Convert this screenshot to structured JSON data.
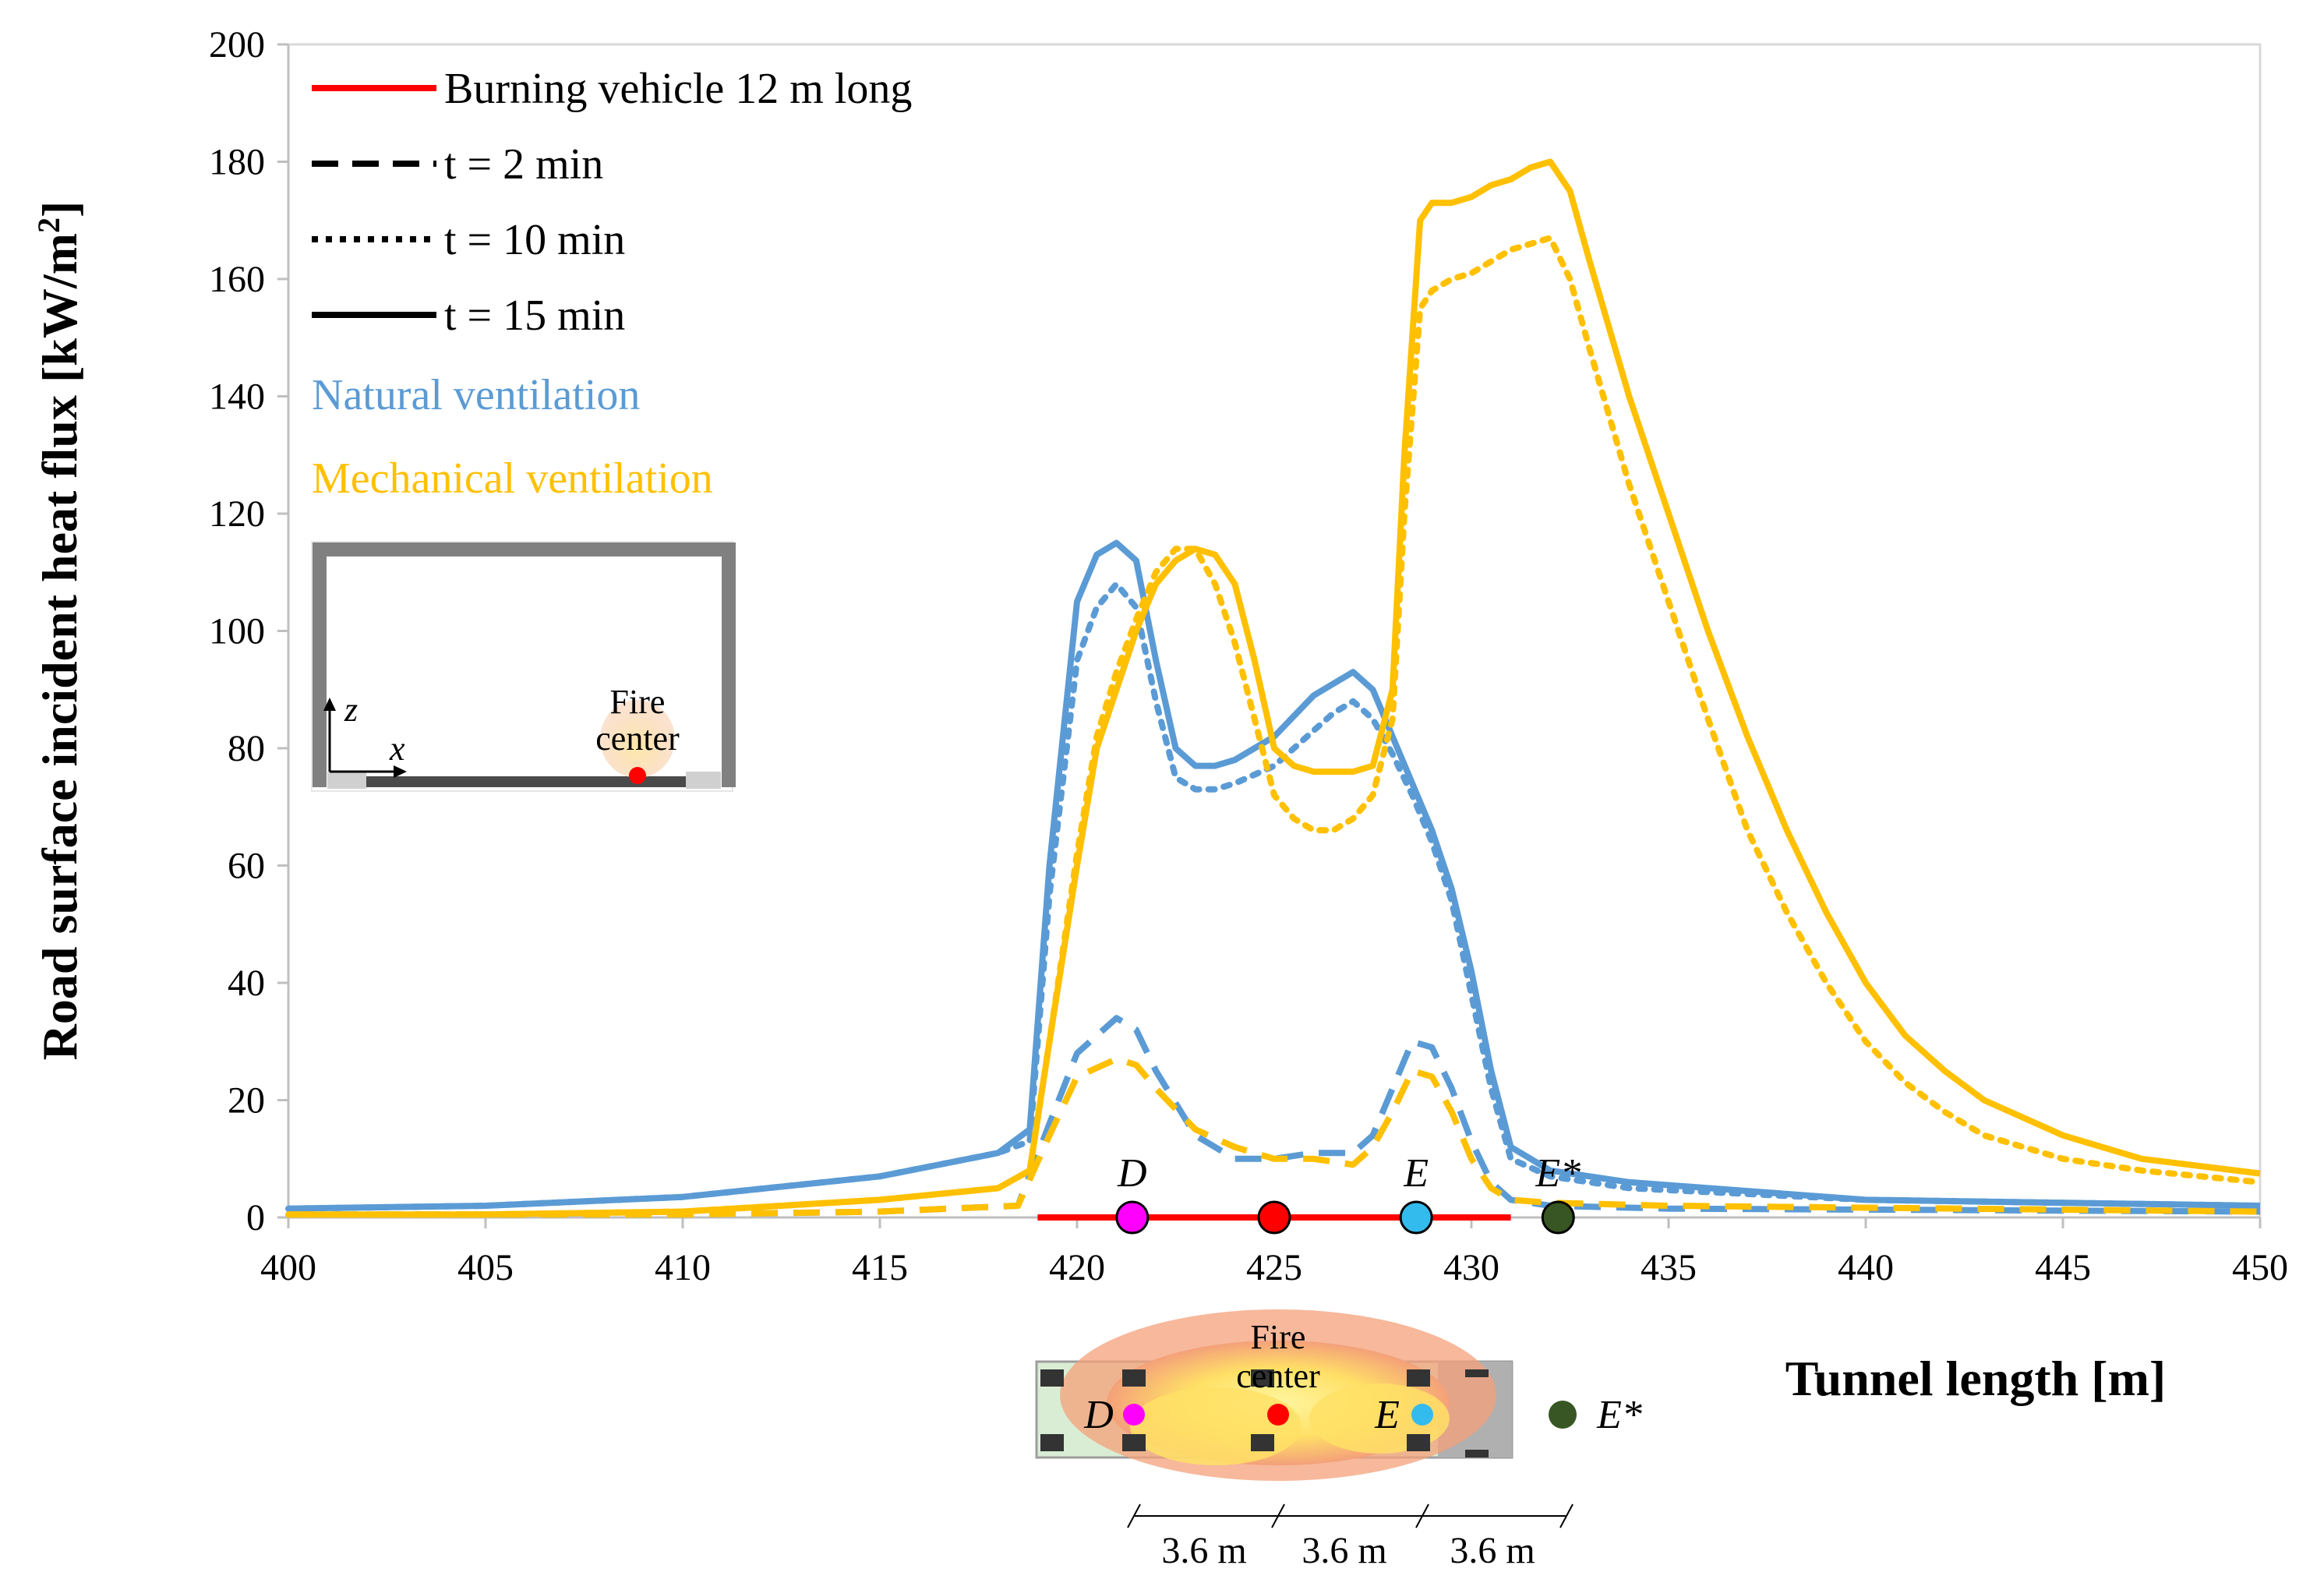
{
  "chart_data": {
    "type": "line",
    "xlabel": "Tunnel length [m]",
    "ylabel_prefix": "Road surface incident heat flux [kW/m",
    "ylabel_sup": "2",
    "ylabel_suffix": "]",
    "xlim": [
      400,
      450
    ],
    "ylim": [
      0,
      200
    ],
    "xticks": [
      400,
      405,
      410,
      415,
      420,
      425,
      430,
      435,
      440,
      445,
      450
    ],
    "yticks": [
      0,
      20,
      40,
      60,
      80,
      100,
      120,
      140,
      160,
      180,
      200
    ],
    "colors": {
      "natural": "#5B9BD5",
      "mechanical": "#FFC000",
      "vehicle": "#FF0000",
      "point_D": "#FF00FF",
      "point_fire": "#FF0000",
      "point_E": "#33BBEE",
      "point_Estar": "#375623"
    },
    "legend": {
      "vehicle": "Burning vehicle 12 m long",
      "t2": "t = 2 min",
      "t10": "t = 10 min",
      "t15": "t = 15 min",
      "natural": "Natural ventilation",
      "mechanical": "Mechanical ventilation"
    },
    "vehicle_segment": [
      419,
      431
    ],
    "points": [
      {
        "label": "D",
        "x": 421.4,
        "y": 0
      },
      {
        "label": "",
        "x": 425,
        "y": 0
      },
      {
        "label": "E",
        "x": 428.6,
        "y": 0
      },
      {
        "label": "E*",
        "x": 432.2,
        "y": 0
      }
    ],
    "series": [
      {
        "name": "Natural ventilation t = 15 min",
        "ventilation": "natural",
        "time": "t15",
        "x": [
          400,
          405,
          410,
          415,
          418,
          418.8,
          419.3,
          420,
          420.5,
          421,
          421.5,
          422,
          422.5,
          423,
          423.5,
          424,
          425,
          426,
          426.5,
          427,
          427.5,
          428,
          428.5,
          429,
          429.5,
          430,
          430.5,
          431,
          432,
          434,
          440,
          450
        ],
        "y": [
          1.5,
          2,
          3.5,
          7,
          11,
          15,
          60,
          105,
          113,
          115,
          112,
          95,
          80,
          77,
          77,
          78,
          82,
          89,
          91,
          93,
          90,
          82,
          74,
          66,
          56,
          42,
          25,
          12,
          8,
          6,
          3,
          2
        ]
      },
      {
        "name": "Natural ventilation t = 10 min",
        "ventilation": "natural",
        "time": "t10",
        "x": [
          400,
          405,
          410,
          415,
          418,
          418.8,
          419.3,
          420,
          420.5,
          421,
          421.5,
          422,
          422.5,
          423,
          423.5,
          424,
          425,
          426,
          426.5,
          427,
          427.5,
          428,
          428.5,
          429,
          429.5,
          430,
          430.5,
          431,
          432,
          434,
          440,
          450
        ],
        "y": [
          1.5,
          2,
          3.5,
          7,
          11,
          13,
          55,
          95,
          104,
          108,
          104,
          88,
          75,
          73,
          73,
          74,
          77,
          83,
          86,
          88,
          85,
          79,
          72,
          64,
          54,
          38,
          22,
          10,
          7,
          5,
          3,
          2
        ]
      },
      {
        "name": "Natural ventilation t = 2 min",
        "ventilation": "natural",
        "time": "t2",
        "x": [
          400,
          410,
          415,
          418.5,
          419.3,
          420,
          421,
          421.5,
          422,
          423,
          424,
          425,
          426,
          427,
          427.5,
          428,
          428.5,
          429,
          429.5,
          430,
          430.5,
          431,
          432,
          435,
          450
        ],
        "y": [
          0.5,
          0.5,
          1,
          2,
          16,
          28,
          34,
          32,
          25,
          14,
          10,
          10,
          11,
          11,
          14,
          22,
          30,
          29,
          22,
          13,
          6,
          3,
          2,
          1.5,
          1
        ]
      },
      {
        "name": "Mechanical ventilation t = 15 min",
        "ventilation": "mechanical",
        "time": "t15",
        "x": [
          400,
          405,
          410,
          415,
          418,
          418.8,
          419.3,
          420,
          420.5,
          421,
          421.5,
          422,
          422.5,
          423,
          423.5,
          424,
          424.5,
          425,
          425.5,
          426,
          426.5,
          427,
          427.5,
          428,
          428.3,
          428.7,
          429,
          429.5,
          430,
          430.5,
          431,
          431.5,
          432,
          432.5,
          433,
          434,
          435,
          436,
          437,
          438,
          439,
          440,
          441,
          442,
          443,
          445,
          447,
          450
        ],
        "y": [
          0.5,
          0.5,
          1,
          3,
          5,
          8,
          30,
          60,
          80,
          90,
          100,
          108,
          112,
          114,
          113,
          108,
          95,
          80,
          77,
          76,
          76,
          76,
          77,
          90,
          130,
          170,
          173,
          173,
          174,
          176,
          177,
          179,
          180,
          175,
          163,
          140,
          120,
          100,
          82,
          66,
          52,
          40,
          31,
          25,
          20,
          14,
          10,
          7.5
        ]
      },
      {
        "name": "Mechanical ventilation t = 10 min",
        "ventilation": "mechanical",
        "time": "t10",
        "x": [
          400,
          405,
          410,
          415,
          418,
          418.8,
          419.3,
          420,
          420.5,
          421,
          421.5,
          422,
          422.5,
          423,
          423.5,
          424,
          424.5,
          425,
          425.5,
          426,
          426.5,
          427,
          427.5,
          428,
          428.3,
          428.7,
          429,
          429.5,
          430,
          430.5,
          431,
          431.5,
          432,
          432.5,
          433,
          434,
          435,
          436,
          437,
          438,
          439,
          440,
          441,
          442,
          443,
          445,
          447,
          450
        ],
        "y": [
          0.5,
          0.5,
          1,
          3,
          5,
          8,
          30,
          62,
          82,
          93,
          102,
          110,
          114,
          114,
          108,
          98,
          85,
          72,
          68,
          66,
          66,
          68,
          72,
          85,
          120,
          155,
          158,
          160,
          161,
          163,
          165,
          166,
          167,
          160,
          148,
          125,
          105,
          85,
          66,
          52,
          40,
          30,
          23,
          18,
          14,
          10,
          8,
          6
        ]
      },
      {
        "name": "Mechanical ventilation t = 2 min",
        "ventilation": "mechanical",
        "time": "t2",
        "x": [
          400,
          410,
          415,
          418.5,
          419.3,
          420,
          421,
          421.5,
          422,
          423,
          424,
          425,
          426,
          427,
          427.5,
          428,
          428.5,
          429,
          429.5,
          430,
          430.5,
          431,
          432,
          435,
          450
        ],
        "y": [
          0.5,
          0.5,
          1,
          2,
          14,
          24,
          27,
          26,
          22,
          15,
          12,
          10,
          10,
          9,
          12,
          18,
          25,
          24,
          18,
          10,
          5,
          3,
          2.5,
          2,
          1
        ]
      }
    ]
  },
  "inset": {
    "fire_center_line1": "Fire",
    "fire_center_line2": "center",
    "axis_z": "z",
    "axis_x": "x"
  },
  "bottom_diagram": {
    "fire_center_line1": "Fire",
    "fire_center_line2": "center",
    "label_D": "D",
    "label_E": "E",
    "label_Estar": "E*",
    "dims": [
      "3.6 m",
      "3.6 m",
      "3.6 m"
    ]
  }
}
